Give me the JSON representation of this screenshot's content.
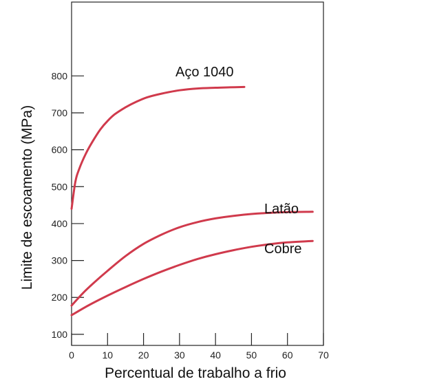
{
  "chart_data": {
    "type": "line",
    "title": "",
    "xlabel": "Percentual de trabalho a frio",
    "ylabel": "Limite de escoamento (MPa)",
    "xlim": [
      0,
      70
    ],
    "ylim": [
      70,
      1000
    ],
    "xticks": [
      0,
      10,
      20,
      30,
      40,
      50,
      60,
      70
    ],
    "yticks": [
      100,
      200,
      300,
      400,
      500,
      600,
      700,
      800
    ],
    "grid": false,
    "line_color": "#d03a4c",
    "series": [
      {
        "name": "Aço 1040",
        "x": [
          0,
          1,
          2,
          4,
          6,
          8,
          10,
          12,
          15,
          18,
          21,
          25,
          30,
          35,
          40,
          44,
          48
        ],
        "y": [
          440,
          510,
          545,
          590,
          625,
          655,
          678,
          696,
          715,
          730,
          742,
          752,
          761,
          766,
          768,
          769,
          770
        ]
      },
      {
        "name": "Latão",
        "x": [
          0,
          3,
          6,
          10,
          15,
          20,
          25,
          30,
          35,
          40,
          45,
          50,
          55,
          60,
          67
        ],
        "y": [
          178,
          210,
          238,
          272,
          312,
          345,
          370,
          390,
          404,
          414,
          421,
          426,
          429,
          431,
          432
        ]
      },
      {
        "name": "Cobre",
        "x": [
          0,
          5,
          10,
          15,
          20,
          25,
          30,
          35,
          40,
          45,
          50,
          55,
          60,
          67
        ],
        "y": [
          152,
          180,
          205,
          228,
          250,
          270,
          288,
          304,
          317,
          328,
          337,
          344,
          349,
          353
        ]
      }
    ]
  }
}
